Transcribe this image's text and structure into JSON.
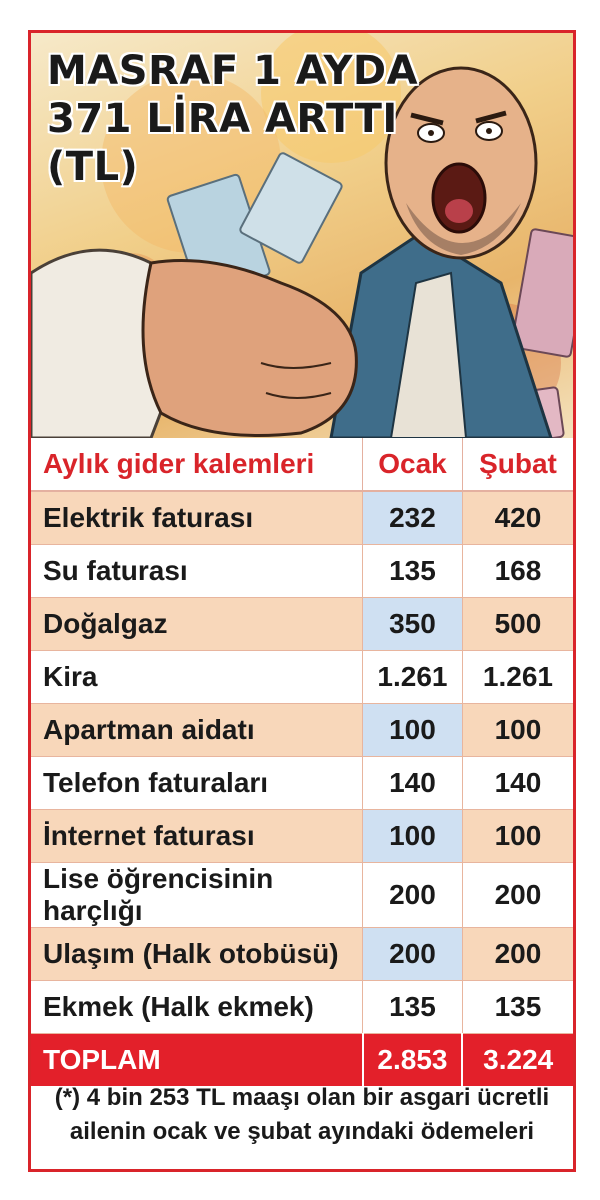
{
  "header": {
    "title_lines": [
      "MASRAF 1 AYDA",
      "371 LİRA ARTTI",
      "(TL)"
    ]
  },
  "chart_data": {
    "type": "table",
    "columns": [
      "Aylık gider kalemleri",
      "Ocak",
      "Şubat"
    ],
    "rows": [
      [
        "Elektrik faturası",
        "232",
        "420"
      ],
      [
        "Su faturası",
        "135",
        "168"
      ],
      [
        "Doğalgaz",
        "350",
        "500"
      ],
      [
        "Kira",
        "1.261",
        "1.261"
      ],
      [
        "Apartman aidatı",
        "100",
        "100"
      ],
      [
        "Telefon faturaları",
        "140",
        "140"
      ],
      [
        "İnternet faturası",
        "100",
        "100"
      ],
      [
        "Lise öğrencisinin harçlığı",
        "200",
        "200"
      ],
      [
        "Ulaşım (Halk otobüsü)",
        "200",
        "200"
      ],
      [
        "Ekmek (Halk ekmek)",
        "135",
        "135"
      ]
    ],
    "total": [
      "TOPLAM",
      "2.853",
      "3.224"
    ],
    "series": [
      {
        "name": "Ocak",
        "values": [
          232,
          135,
          350,
          1261,
          100,
          140,
          100,
          200,
          200,
          135
        ]
      },
      {
        "name": "Şubat",
        "values": [
          420,
          168,
          500,
          1261,
          100,
          140,
          100,
          200,
          200,
          135
        ]
      }
    ]
  },
  "footnote": {
    "line1": "(*) 4 bin 253 TL maaşı olan bir asgari ücretli",
    "line2": "ailenin ocak ve şubat ayındaki ödemeleri"
  },
  "colors": {
    "accent_red": "#d9242a",
    "row_peach": "#f8d7ba",
    "row_blue": "#cfe0f2",
    "total_red": "#e3202a"
  }
}
